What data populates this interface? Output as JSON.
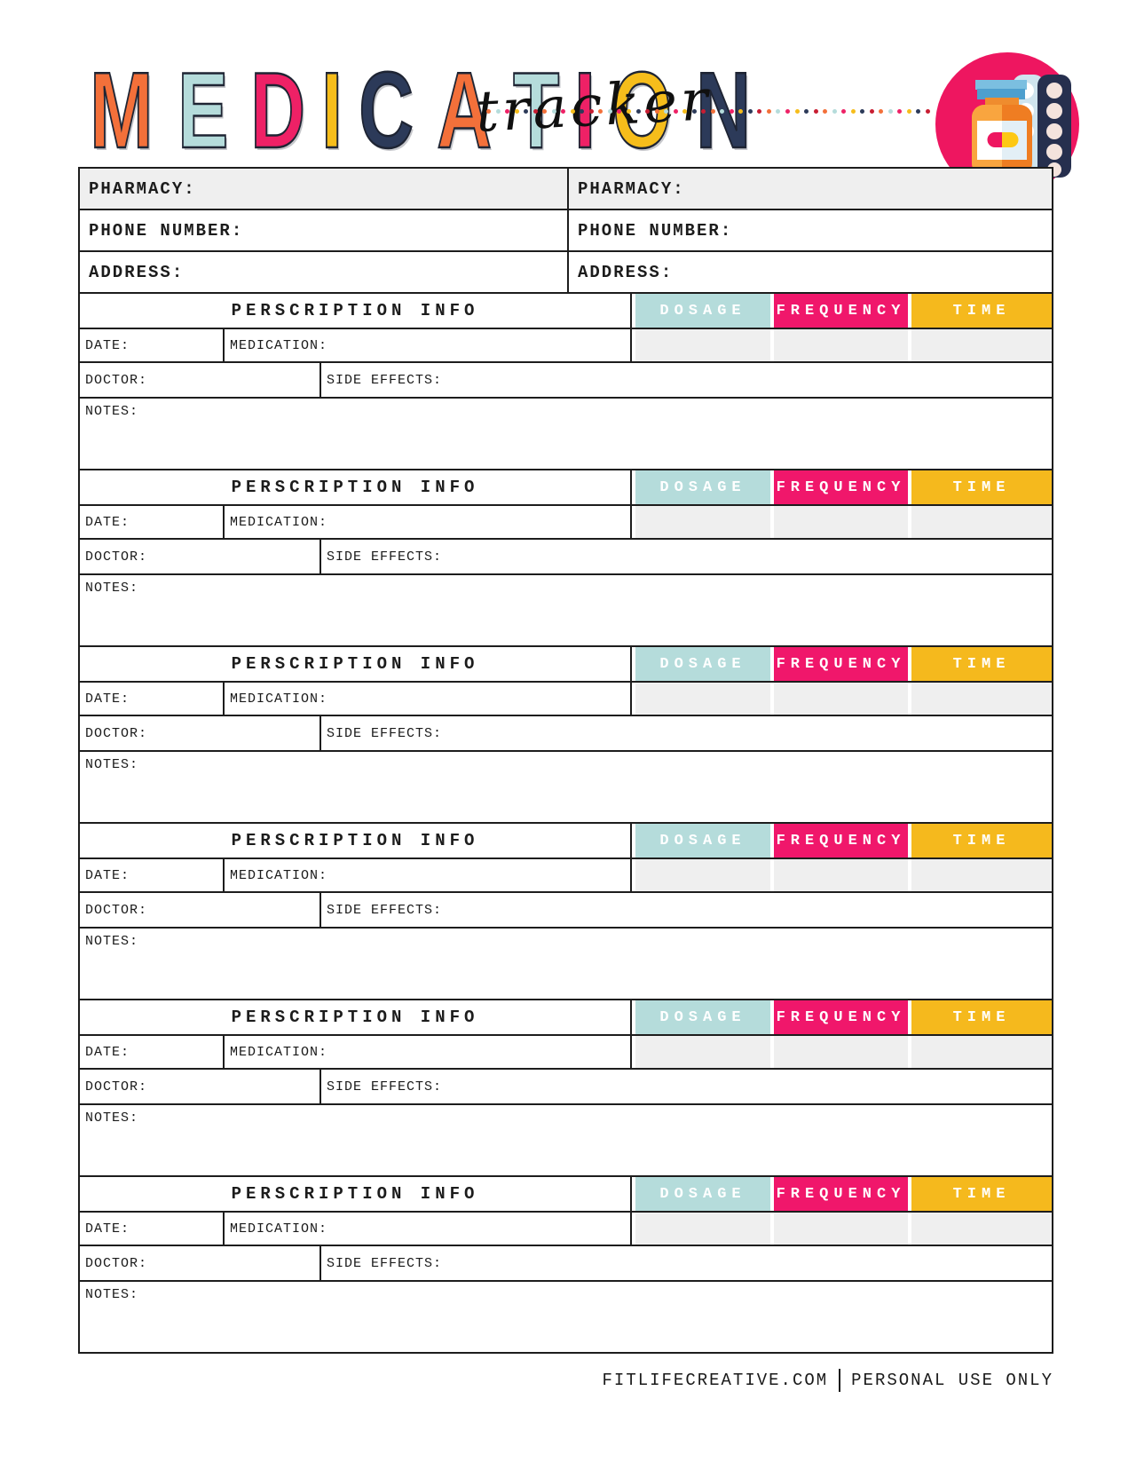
{
  "header": {
    "title_word": "MEDICATION",
    "title_letters": [
      {
        "ch": "M",
        "color": "#f3703a"
      },
      {
        "ch": "E",
        "color": "#b5dcdb"
      },
      {
        "ch": "D",
        "color": "#ee2166"
      },
      {
        "ch": "I",
        "color": "#f6bd1b"
      },
      {
        "ch": "C",
        "color": "#2c3a59"
      },
      {
        "ch": "A",
        "color": "#f3703a"
      },
      {
        "ch": "T",
        "color": "#b5dcdb"
      },
      {
        "ch": "I",
        "color": "#ee2166"
      },
      {
        "ch": "O",
        "color": "#f6bd1b"
      },
      {
        "ch": "N",
        "color": "#2c3a59"
      }
    ],
    "title_script": "tracker",
    "dot_palette": [
      "#f3703a",
      "#b5dcdb",
      "#ee2166",
      "#f6bd1b",
      "#2c3a59",
      "#c81d32"
    ],
    "dot_count": 48,
    "logo_icon": "pill-bottle-and-blister-pack"
  },
  "pharmacy": {
    "left": {
      "pharmacy_label": "PHARMACY:",
      "phone_label": "PHONE NUMBER:",
      "address_label": "ADDRESS:"
    },
    "right": {
      "pharmacy_label": "PHARMACY:",
      "phone_label": "PHONE NUMBER:",
      "address_label": "ADDRESS:"
    }
  },
  "prescription": {
    "block_count": 6,
    "labels": {
      "header": "PERSCRIPTION INFO",
      "dosage": "DOSAGE",
      "frequency": "FREQUENCY",
      "time": "TIME",
      "date": "DATE:",
      "medication": "MEDICATION:",
      "doctor": "DOCTOR:",
      "side_effects": "SIDE EFFECTS:",
      "notes": "NOTES:"
    }
  },
  "footer": {
    "site": "FITLIFECREATIVE.COM",
    "separator": "|",
    "note": "PERSONAL USE ONLY"
  },
  "colors": {
    "dosage_bg": "#b5dcdb",
    "frequency_bg": "#f0176b",
    "time_bg": "#f5b91d",
    "field_bg": "#efefef",
    "border": "#1d1d1d",
    "logo_circle": "#ee1660"
  }
}
